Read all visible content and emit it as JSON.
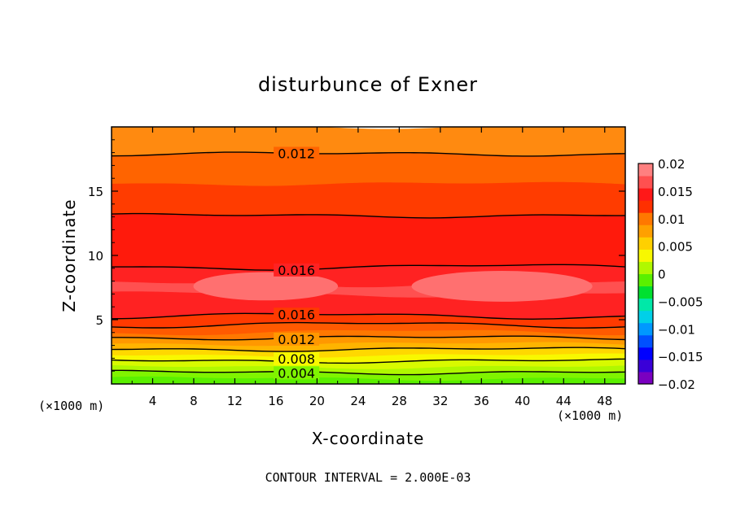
{
  "chart_data": {
    "type": "heatmap",
    "title": "disturbunce of Exner",
    "xlabel": "X-coordinate",
    "ylabel": "Z-coordinate",
    "x_unit": "(×1000 m)",
    "z_unit": "(×1000 m)",
    "xlim": [
      0,
      50
    ],
    "ylim": [
      0,
      20
    ],
    "x_ticks": [
      4,
      8,
      12,
      16,
      20,
      24,
      28,
      32,
      36,
      40,
      44,
      48
    ],
    "y_ticks": [
      5,
      10,
      15
    ],
    "footer": "CONTOUR INTERVAL = 2.000E-03",
    "colorbar": {
      "ticks": [
        "0.02",
        "0.015",
        "0.01",
        "0.005",
        "0",
        "−0.005",
        "−0.01",
        "−0.015",
        "−0.02"
      ],
      "range": [
        -0.02,
        0.02
      ],
      "colors": [
        "#7a00c0",
        "#3a00d8",
        "#0000ff",
        "#0050ff",
        "#0098ff",
        "#00d0e8",
        "#00e8a8",
        "#00e030",
        "#5af000",
        "#b0f800",
        "#f8f800",
        "#ffd000",
        "#ffa000",
        "#ff7800",
        "#ff3000",
        "#ff1818",
        "#ff5050",
        "#ff8080"
      ]
    },
    "contour_labels": [
      {
        "value": "0.012",
        "x": 18,
        "z": 17.9
      },
      {
        "value": "0.016",
        "x": 18,
        "z": 9.1
      },
      {
        "value": "0.016",
        "x": 18,
        "z": 5.3
      },
      {
        "value": "0.012",
        "x": 18,
        "z": 3.5
      },
      {
        "value": "0.008",
        "x": 18,
        "z": 2.1
      },
      {
        "value": "0.004",
        "x": 18,
        "z": 0.8
      }
    ],
    "bands": [
      {
        "zmax": 0.45,
        "color": "#5af000"
      },
      {
        "zmax": 0.9,
        "color": "#80f400"
      },
      {
        "zmax": 1.35,
        "color": "#b0f800"
      },
      {
        "zmax": 1.8,
        "color": "#d8fa00"
      },
      {
        "zmax": 2.25,
        "color": "#f8f800"
      },
      {
        "zmax": 2.7,
        "color": "#ffd800"
      },
      {
        "zmax": 3.15,
        "color": "#ffb400"
      },
      {
        "zmax": 3.6,
        "color": "#ff9800"
      },
      {
        "zmax": 4.05,
        "color": "#ff7800"
      },
      {
        "zmax": 4.6,
        "color": "#ff5a00"
      },
      {
        "zmax": 5.3,
        "color": "#ff3a00"
      },
      {
        "zmax": 7.0,
        "color": "#ff2222"
      },
      {
        "zmax": 7.8,
        "color": "#ff5050"
      },
      {
        "zmax": 9.1,
        "color": "#ff2222"
      },
      {
        "zmax": 13.1,
        "color": "#ff1a0c"
      },
      {
        "zmax": 15.6,
        "color": "#ff3c00"
      },
      {
        "zmax": 17.9,
        "color": "#ff6400"
      },
      {
        "zmax": 20,
        "color": "#ff8a10"
      }
    ],
    "contours": [
      0.9,
      1.8,
      2.7,
      3.6,
      4.6,
      5.3,
      9.1,
      13.1,
      17.9
    ]
  }
}
